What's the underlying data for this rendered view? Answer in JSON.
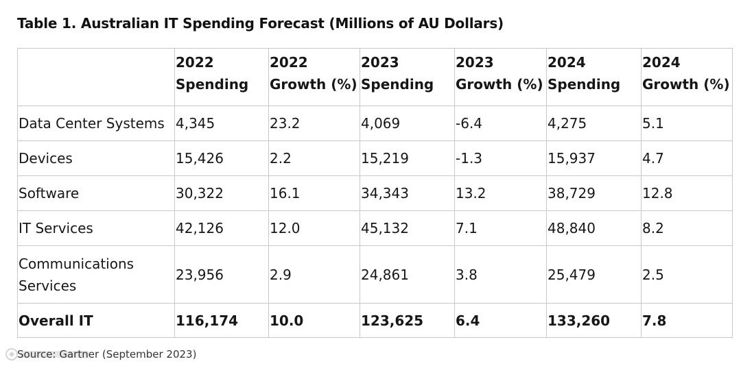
{
  "title": "Table 1. Australian IT Spending Forecast (Millions of AU Dollars)",
  "table": {
    "headers": [
      {
        "line1": "",
        "line2": ""
      },
      {
        "line1": "2022",
        "line2": "Spending"
      },
      {
        "line1": "2022",
        "line2": "Growth (%)"
      },
      {
        "line1": "2023",
        "line2": "Spending"
      },
      {
        "line1": "2023",
        "line2": "Growth (%)"
      },
      {
        "line1": "2024",
        "line2": "Spending"
      },
      {
        "line1": "2024",
        "line2": "Growth (%)"
      }
    ],
    "rows": [
      {
        "segment": "Data Center Systems",
        "s2022": "4,345",
        "g2022": "23.2",
        "s2023": "4,069",
        "g2023": "-6.4",
        "s2024": "4,275",
        "g2024": "5.1"
      },
      {
        "segment": "Devices",
        "s2022": "15,426",
        "g2022": "2.2",
        "s2023": "15,219",
        "g2023": "-1.3",
        "s2024": "15,937",
        "g2024": "4.7"
      },
      {
        "segment": "Software",
        "s2022": "30,322",
        "g2022": "16.1",
        "s2023": "34,343",
        "g2023": "13.2",
        "s2024": "38,729",
        "g2024": "12.8"
      },
      {
        "segment": "IT Services",
        "s2022": "42,126",
        "g2022": "12.0",
        "s2023": "45,132",
        "g2023": "7.1",
        "s2024": "48,840",
        "g2024": "8.2"
      },
      {
        "segment": "Communications Services",
        "s2022": "23,956",
        "g2022": "2.9",
        "s2023": "24,861",
        "g2023": "3.8",
        "s2024": "25,479",
        "g2024": "2.5"
      }
    ],
    "total": {
      "segment": "Overall IT",
      "s2022": "116,174",
      "g2022": "10.0",
      "s2023": "123,625",
      "g2023": "6.4",
      "s2024": "133,260",
      "g2024": "7.8"
    }
  },
  "source": "Source: Gartner (September 2023)",
  "watermark_icon": "watermark-logo"
}
